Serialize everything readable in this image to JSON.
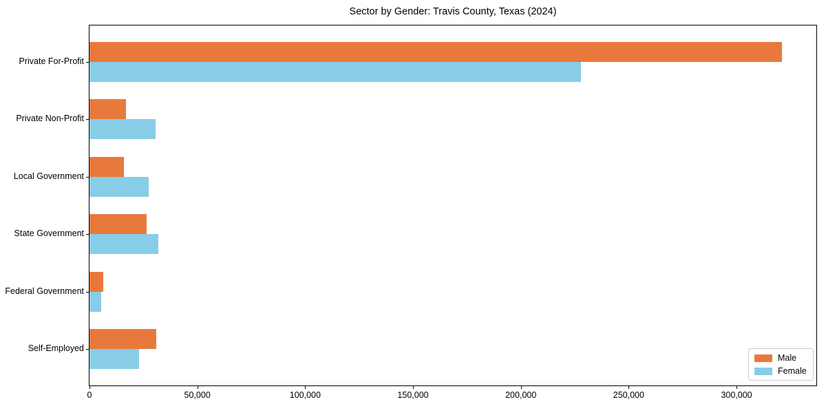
{
  "chart_data": {
    "type": "bar",
    "orientation": "horizontal",
    "title": "Sector by Gender: Travis County, Texas (2024)",
    "categories": [
      "Private For-Profit",
      "Private Non-Profit",
      "Local Government",
      "State Government",
      "Federal Government",
      "Self-Employed"
    ],
    "series": [
      {
        "name": "Male",
        "color": "#E8793C",
        "values": [
          321000,
          17000,
          16000,
          26500,
          6500,
          31000
        ]
      },
      {
        "name": "Female",
        "color": "#87CDE8",
        "values": [
          228000,
          30500,
          27500,
          32000,
          5500,
          23000
        ]
      }
    ],
    "xlim": [
      0,
      337000
    ],
    "xticks": [
      0,
      50000,
      100000,
      150000,
      200000,
      250000,
      300000
    ],
    "xtick_labels": [
      "0",
      "50,000",
      "100,000",
      "150,000",
      "200,000",
      "250,000",
      "300,000"
    ],
    "xlabel": "",
    "ylabel": "",
    "grid": false,
    "legend_position": "lower right"
  }
}
